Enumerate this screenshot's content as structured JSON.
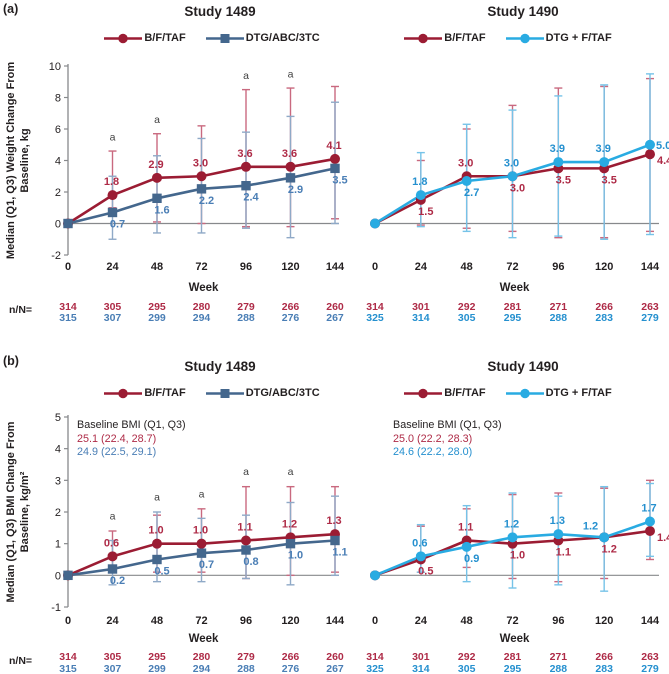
{
  "panels": [
    {
      "label": "(a)"
    },
    {
      "label": "(b)"
    }
  ],
  "n_label": "n/N=",
  "sig_note": "a",
  "colors": {
    "bftaf_line": "#9b1c33",
    "bftaf_err": "#c9697f",
    "bftaf_text": "#ae2b47",
    "dtg_abc_line": "#44678d",
    "dtg_abc_err": "#8fa9c7",
    "dtg_abc_text": "#4a7eb5",
    "dtg_ftaf_line": "#29abe2",
    "dtg_ftaf_err": "#76c3e8",
    "dtg_ftaf_text": "#2590cf",
    "axis_gray": "#87898c",
    "sig_text": "#404040"
  },
  "chart_data": [
    {
      "panel": "a",
      "side": "left",
      "type": "line",
      "title": "Study 1489",
      "xlabel": "Week",
      "ylabel_lines": [
        "Median (Q1, Q3) Weight Change From",
        "Baseline, kg"
      ],
      "ylim": [
        -2,
        10
      ],
      "yticks": [
        10,
        8,
        6,
        4,
        2,
        0,
        -2
      ],
      "show_yaxis": true,
      "weeks": [
        0,
        24,
        48,
        72,
        96,
        120,
        144
      ],
      "sig_weeks": [
        24,
        48,
        96,
        120
      ],
      "annotation": null,
      "series": [
        {
          "name": "B/F/TAF",
          "marker": "circle",
          "color": "#9b1c33",
          "err_color": "#c9697f",
          "label_color": "#ae2b47",
          "median": [
            0,
            1.8,
            2.9,
            3.0,
            3.6,
            3.6,
            4.1
          ],
          "q1": [
            null,
            1.0,
            0.1,
            0.0,
            -0.2,
            -0.2,
            0.3
          ],
          "q3": [
            null,
            4.6,
            5.7,
            6.2,
            8.5,
            8.6,
            8.7
          ],
          "labels": [
            "",
            "1.8",
            "2.9",
            "3.0",
            "3.6",
            "3.6",
            "4.1"
          ],
          "label_side": [
            "",
            "above",
            "above",
            "above",
            "above",
            "above",
            "above"
          ],
          "n": [
            "314",
            "305",
            "295",
            "280",
            "279",
            "266",
            "260"
          ]
        },
        {
          "name": "DTG/ABC/3TC",
          "marker": "square",
          "color": "#44678d",
          "err_color": "#8fa9c7",
          "label_color": "#4a7eb5",
          "median": [
            0,
            0.7,
            1.6,
            2.2,
            2.4,
            2.9,
            3.5
          ],
          "q1": [
            null,
            -1.0,
            -0.6,
            -0.6,
            -0.3,
            -0.9,
            0.0
          ],
          "q3": [
            null,
            3.0,
            4.3,
            5.4,
            5.8,
            6.8,
            7.7
          ],
          "labels": [
            "",
            "0.7",
            "1.6",
            "2.2",
            "2.4",
            "2.9",
            "3.5"
          ],
          "label_side": [
            "",
            "below",
            "below",
            "below",
            "below",
            "below",
            "below"
          ],
          "n": [
            "315",
            "307",
            "299",
            "294",
            "288",
            "276",
            "267"
          ]
        }
      ]
    },
    {
      "panel": "a",
      "side": "right",
      "type": "line",
      "title": "Study 1490",
      "xlabel": "Week",
      "ylabel_lines": [],
      "ylim": [
        -2,
        10
      ],
      "yticks": [],
      "show_yaxis": false,
      "weeks": [
        0,
        24,
        48,
        72,
        96,
        120,
        144
      ],
      "sig_weeks": [],
      "annotation": null,
      "series": [
        {
          "name": "B/F/TAF",
          "marker": "circle",
          "color": "#9b1c33",
          "err_color": "#c9697f",
          "label_color": "#ae2b47",
          "median": [
            0,
            1.5,
            3.0,
            3.0,
            3.5,
            3.5,
            4.4
          ],
          "q1": [
            null,
            -0.1,
            -0.3,
            -0.5,
            -0.9,
            -0.9,
            -0.5
          ],
          "q3": [
            null,
            4.0,
            6.0,
            7.5,
            8.6,
            8.7,
            9.2
          ],
          "labels": [
            "",
            "1.5",
            "3.0",
            "3.0",
            "3.5",
            "3.5",
            "4.4"
          ],
          "label_side": [
            "",
            "below",
            "above",
            "below",
            "below",
            "below",
            "right-below"
          ],
          "n": [
            "314",
            "301",
            "292",
            "281",
            "271",
            "266",
            "263"
          ]
        },
        {
          "name": "DTG + F/TAF",
          "marker": "circle",
          "color": "#29abe2",
          "err_color": "#76c3e8",
          "label_color": "#2590cf",
          "median": [
            0,
            1.8,
            2.7,
            3.0,
            3.9,
            3.9,
            5.0
          ],
          "q1": [
            null,
            -0.2,
            -0.5,
            -0.9,
            -0.8,
            -1.0,
            -0.7
          ],
          "q3": [
            null,
            4.5,
            6.3,
            7.2,
            8.1,
            8.8,
            9.5
          ],
          "labels": [
            "",
            "1.8",
            "2.7",
            "3.0",
            "3.9",
            "3.9",
            "5.0"
          ],
          "label_side": [
            "",
            "above",
            "below",
            "above",
            "above",
            "above",
            "right"
          ],
          "n": [
            "325",
            "314",
            "305",
            "295",
            "288",
            "283",
            "279"
          ]
        }
      ]
    },
    {
      "panel": "b",
      "side": "left",
      "type": "line",
      "title": "Study 1489",
      "xlabel": "Week",
      "ylabel_lines": [
        "Median (Q1, Q3) BMI Change From",
        "Baseline, kg/m²"
      ],
      "ylim": [
        -1,
        5
      ],
      "yticks": [
        5,
        4,
        3,
        2,
        1,
        0,
        -1
      ],
      "show_yaxis": true,
      "weeks": [
        0,
        24,
        48,
        72,
        96,
        120,
        144
      ],
      "sig_weeks": [
        24,
        48,
        72,
        96,
        120
      ],
      "annotation": {
        "title": "Baseline BMI (Q1, Q3)",
        "lines": [
          {
            "text": "25.1 (22.4, 28.7)",
            "color": "#ae2b47"
          },
          {
            "text": "24.9 (22.5, 29.1)",
            "color": "#4a7eb5"
          }
        ]
      },
      "series": [
        {
          "name": "B/F/TAF",
          "marker": "circle",
          "color": "#9b1c33",
          "err_color": "#c9697f",
          "label_color": "#ae2b47",
          "median": [
            0,
            0.6,
            1.0,
            1.0,
            1.1,
            1.2,
            1.3
          ],
          "q1": [
            null,
            0.3,
            0.1,
            0.1,
            -0.1,
            0.0,
            0.1
          ],
          "q3": [
            null,
            1.4,
            1.9,
            2.1,
            2.8,
            2.8,
            2.8
          ],
          "labels": [
            "",
            "0.6",
            "1.0",
            "1.0",
            "1.1",
            "1.2",
            "1.3"
          ],
          "label_side": [
            "",
            "above",
            "above",
            "above",
            "above",
            "above",
            "above"
          ],
          "n": [
            "314",
            "305",
            "295",
            "280",
            "279",
            "266",
            "260"
          ]
        },
        {
          "name": "DTG/ABC/3TC",
          "marker": "square",
          "color": "#44678d",
          "err_color": "#8fa9c7",
          "label_color": "#4a7eb5",
          "median": [
            0,
            0.2,
            0.5,
            0.7,
            0.8,
            1.0,
            1.1
          ],
          "q1": [
            null,
            -0.3,
            -0.2,
            -0.2,
            -0.1,
            -0.3,
            0.0
          ],
          "q3": [
            null,
            1.1,
            2.0,
            1.8,
            1.9,
            2.3,
            2.5
          ],
          "labels": [
            "",
            "0.2",
            "0.5",
            "0.7",
            "0.8",
            "1.0",
            "1.1"
          ],
          "label_side": [
            "",
            "below",
            "below",
            "below",
            "below",
            "below",
            "below"
          ],
          "n": [
            "315",
            "307",
            "299",
            "294",
            "288",
            "276",
            "267"
          ]
        }
      ]
    },
    {
      "panel": "b",
      "side": "right",
      "type": "line",
      "title": "Study 1490",
      "xlabel": "Week",
      "ylabel_lines": [],
      "ylim": [
        -1,
        5
      ],
      "yticks": [],
      "show_yaxis": false,
      "weeks": [
        0,
        24,
        48,
        72,
        96,
        120,
        144
      ],
      "sig_weeks": [],
      "annotation": {
        "title": "Baseline BMI (Q1, Q3)",
        "lines": [
          {
            "text": "25.0 (22.2, 28.3)",
            "color": "#ae2b47"
          },
          {
            "text": "24.6 (22.2, 28.0)",
            "color": "#2590cf"
          }
        ]
      },
      "series": [
        {
          "name": "B/F/TAF",
          "marker": "circle",
          "color": "#9b1c33",
          "err_color": "#c9697f",
          "label_color": "#ae2b47",
          "median": [
            0,
            0.5,
            1.1,
            1.0,
            1.1,
            1.2,
            1.4
          ],
          "q1": [
            null,
            0.1,
            0.25,
            -0.1,
            -0.2,
            -0.1,
            0.5
          ],
          "q3": [
            null,
            1.55,
            2.1,
            2.55,
            2.6,
            2.75,
            3.0
          ],
          "labels": [
            "",
            "0.5",
            "1.1",
            "1.0",
            "1.1",
            "1.2",
            "1.4"
          ],
          "label_side": [
            "",
            "below",
            "above",
            "below",
            "below",
            "below",
            "right-below"
          ],
          "n": [
            "314",
            "301",
            "292",
            "281",
            "271",
            "266",
            "263"
          ]
        },
        {
          "name": "DTG + F/TAF",
          "marker": "circle",
          "color": "#29abe2",
          "err_color": "#76c3e8",
          "label_color": "#2590cf",
          "median": [
            0,
            0.6,
            0.9,
            1.2,
            1.3,
            1.2,
            1.7
          ],
          "q1": [
            null,
            0.1,
            -0.2,
            -0.4,
            -0.3,
            -0.5,
            0.6
          ],
          "q3": [
            null,
            1.6,
            2.2,
            2.6,
            2.5,
            2.8,
            2.9
          ],
          "labels": [
            "",
            "0.6",
            "0.9",
            "1.2",
            "1.3",
            "1.2",
            "1.7"
          ],
          "label_side": [
            "",
            "above",
            "below",
            "above",
            "above",
            "above-left",
            "above"
          ],
          "n": [
            "325",
            "314",
            "305",
            "295",
            "288",
            "283",
            "279"
          ]
        }
      ]
    }
  ]
}
